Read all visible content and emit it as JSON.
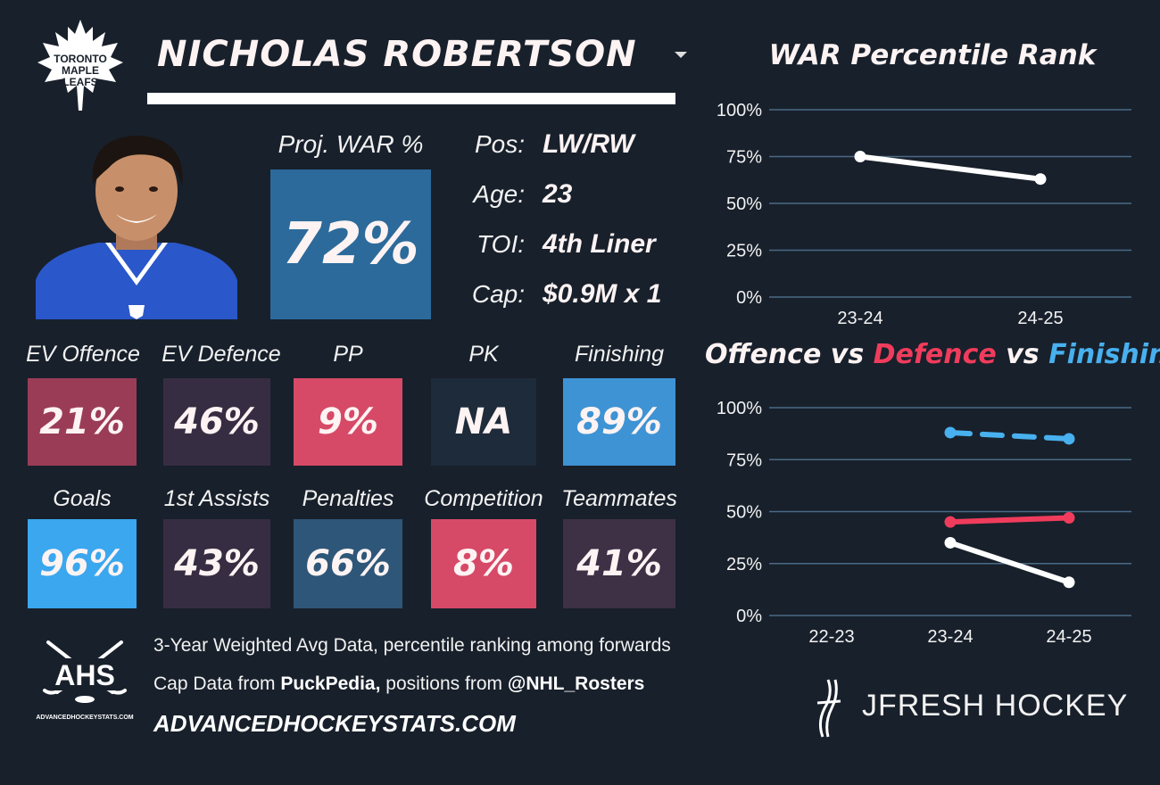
{
  "header": {
    "player_name": "NICHOLAS ROBERTSON",
    "team_logo": "toronto-maple-leafs-logo",
    "logo_text": [
      "TORONTO",
      "MAPLE",
      "LEAFS"
    ]
  },
  "projection": {
    "label": "Proj. WAR %",
    "value": "72%"
  },
  "info": [
    {
      "label": "Pos:",
      "value": "LW/RW"
    },
    {
      "label": "Age:",
      "value": "23"
    },
    {
      "label": "TOI:",
      "value": "4th Liner"
    },
    {
      "label": "Cap:",
      "value": "$0.9M x 1"
    }
  ],
  "tiles_row1": [
    {
      "label": "EV Offence",
      "value": "21%",
      "color": "#9b3c56"
    },
    {
      "label": "EV Defence",
      "value": "46%",
      "color": "#372d42"
    },
    {
      "label": "PP",
      "value": "9%",
      "color": "#d64a67"
    },
    {
      "label": "PK",
      "value": "NA",
      "color": "#1e2b3a"
    },
    {
      "label": "Finishing",
      "value": "89%",
      "color": "#3e93d4"
    }
  ],
  "tiles_row2": [
    {
      "label": "Goals",
      "value": "96%",
      "color": "#3aa7ef"
    },
    {
      "label": "1st Assists",
      "value": "43%",
      "color": "#372d42"
    },
    {
      "label": "Penalties",
      "value": "66%",
      "color": "#2e5679"
    },
    {
      "label": "Competition",
      "value": "8%",
      "color": "#d64a67"
    },
    {
      "label": "Teammates",
      "value": "41%",
      "color": "#3e3045"
    }
  ],
  "footer": {
    "line1": "3-Year Weighted Avg Data, percentile ranking among forwards",
    "line2_prefix": "Cap Data from ",
    "line2_source": "PuckPedia,",
    "line2_mid": " positions from ",
    "line2_handle": "@NHL_Rosters",
    "site": "ADVANCEDHOCKEYSTATS.COM",
    "ahs_logo": {
      "text": "AHS",
      "subtext": "ADVANCEDHOCKEYSTATS.COM"
    },
    "jfresh_logo": {
      "text": "JFRESH HOCKEY"
    }
  },
  "colors": {
    "background": "#18202b",
    "offence": "#ffffff",
    "defence": "#f03c5c",
    "finishing": "#48b0ef",
    "grid": "#4a6a86"
  },
  "chart_data": [
    {
      "type": "line",
      "title": "WAR Percentile Rank",
      "categories": [
        "23-24",
        "24-25"
      ],
      "series": [
        {
          "values": [
            75,
            63
          ],
          "color": "#ffffff"
        }
      ],
      "ylim": [
        0,
        100
      ],
      "yticks": [
        "0%",
        "25%",
        "50%",
        "75%",
        "100%"
      ],
      "grid": true
    },
    {
      "type": "line",
      "title_parts": [
        {
          "text": "Offence",
          "color": "#fdf3f3"
        },
        {
          "text": " vs ",
          "color": "#fdf3f3"
        },
        {
          "text": "Defence",
          "color": "#f03c5c"
        },
        {
          "text": " vs ",
          "color": "#fdf3f3"
        },
        {
          "text": "Finishing",
          "color": "#48b0ef"
        }
      ],
      "categories": [
        "22-23",
        "23-24",
        "24-25"
      ],
      "series": [
        {
          "values": [
            null,
            35,
            16
          ],
          "color": "#ffffff",
          "dashed": false
        },
        {
          "values": [
            null,
            45,
            47
          ],
          "color": "#f03c5c",
          "dashed": false
        },
        {
          "values": [
            null,
            88,
            85
          ],
          "color": "#48b0ef",
          "dashed": true
        }
      ],
      "ylim": [
        0,
        100
      ],
      "yticks": [
        "0%",
        "25%",
        "50%",
        "75%",
        "100%"
      ],
      "grid": true
    }
  ]
}
